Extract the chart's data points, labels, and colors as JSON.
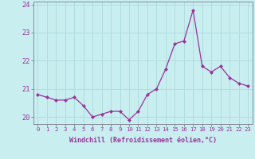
{
  "x": [
    0,
    1,
    2,
    3,
    4,
    5,
    6,
    7,
    8,
    9,
    10,
    11,
    12,
    13,
    14,
    15,
    16,
    17,
    18,
    19,
    20,
    21,
    22,
    23
  ],
  "y": [
    20.8,
    20.7,
    20.6,
    20.6,
    20.7,
    20.4,
    20.0,
    20.1,
    20.2,
    20.2,
    19.9,
    20.2,
    20.8,
    21.0,
    21.7,
    22.6,
    22.7,
    23.8,
    21.8,
    21.6,
    21.8,
    21.4,
    21.2,
    21.1
  ],
  "line_color": "#993399",
  "marker": "D",
  "marker_size": 2.0,
  "bg_color": "#c8eef0",
  "grid_color": "#b0dde0",
  "xlabel": "Windchill (Refroidissement éolien,°C)",
  "xlabel_color": "#993399",
  "tick_color": "#993399",
  "spine_color": "#888899",
  "ylim": [
    19.75,
    24.1
  ],
  "yticks": [
    20,
    21,
    22,
    23,
    24
  ],
  "xlim": [
    -0.5,
    23.5
  ],
  "xlabel_fontsize": 6.0,
  "xtick_fontsize": 5.2,
  "ytick_fontsize": 6.2
}
